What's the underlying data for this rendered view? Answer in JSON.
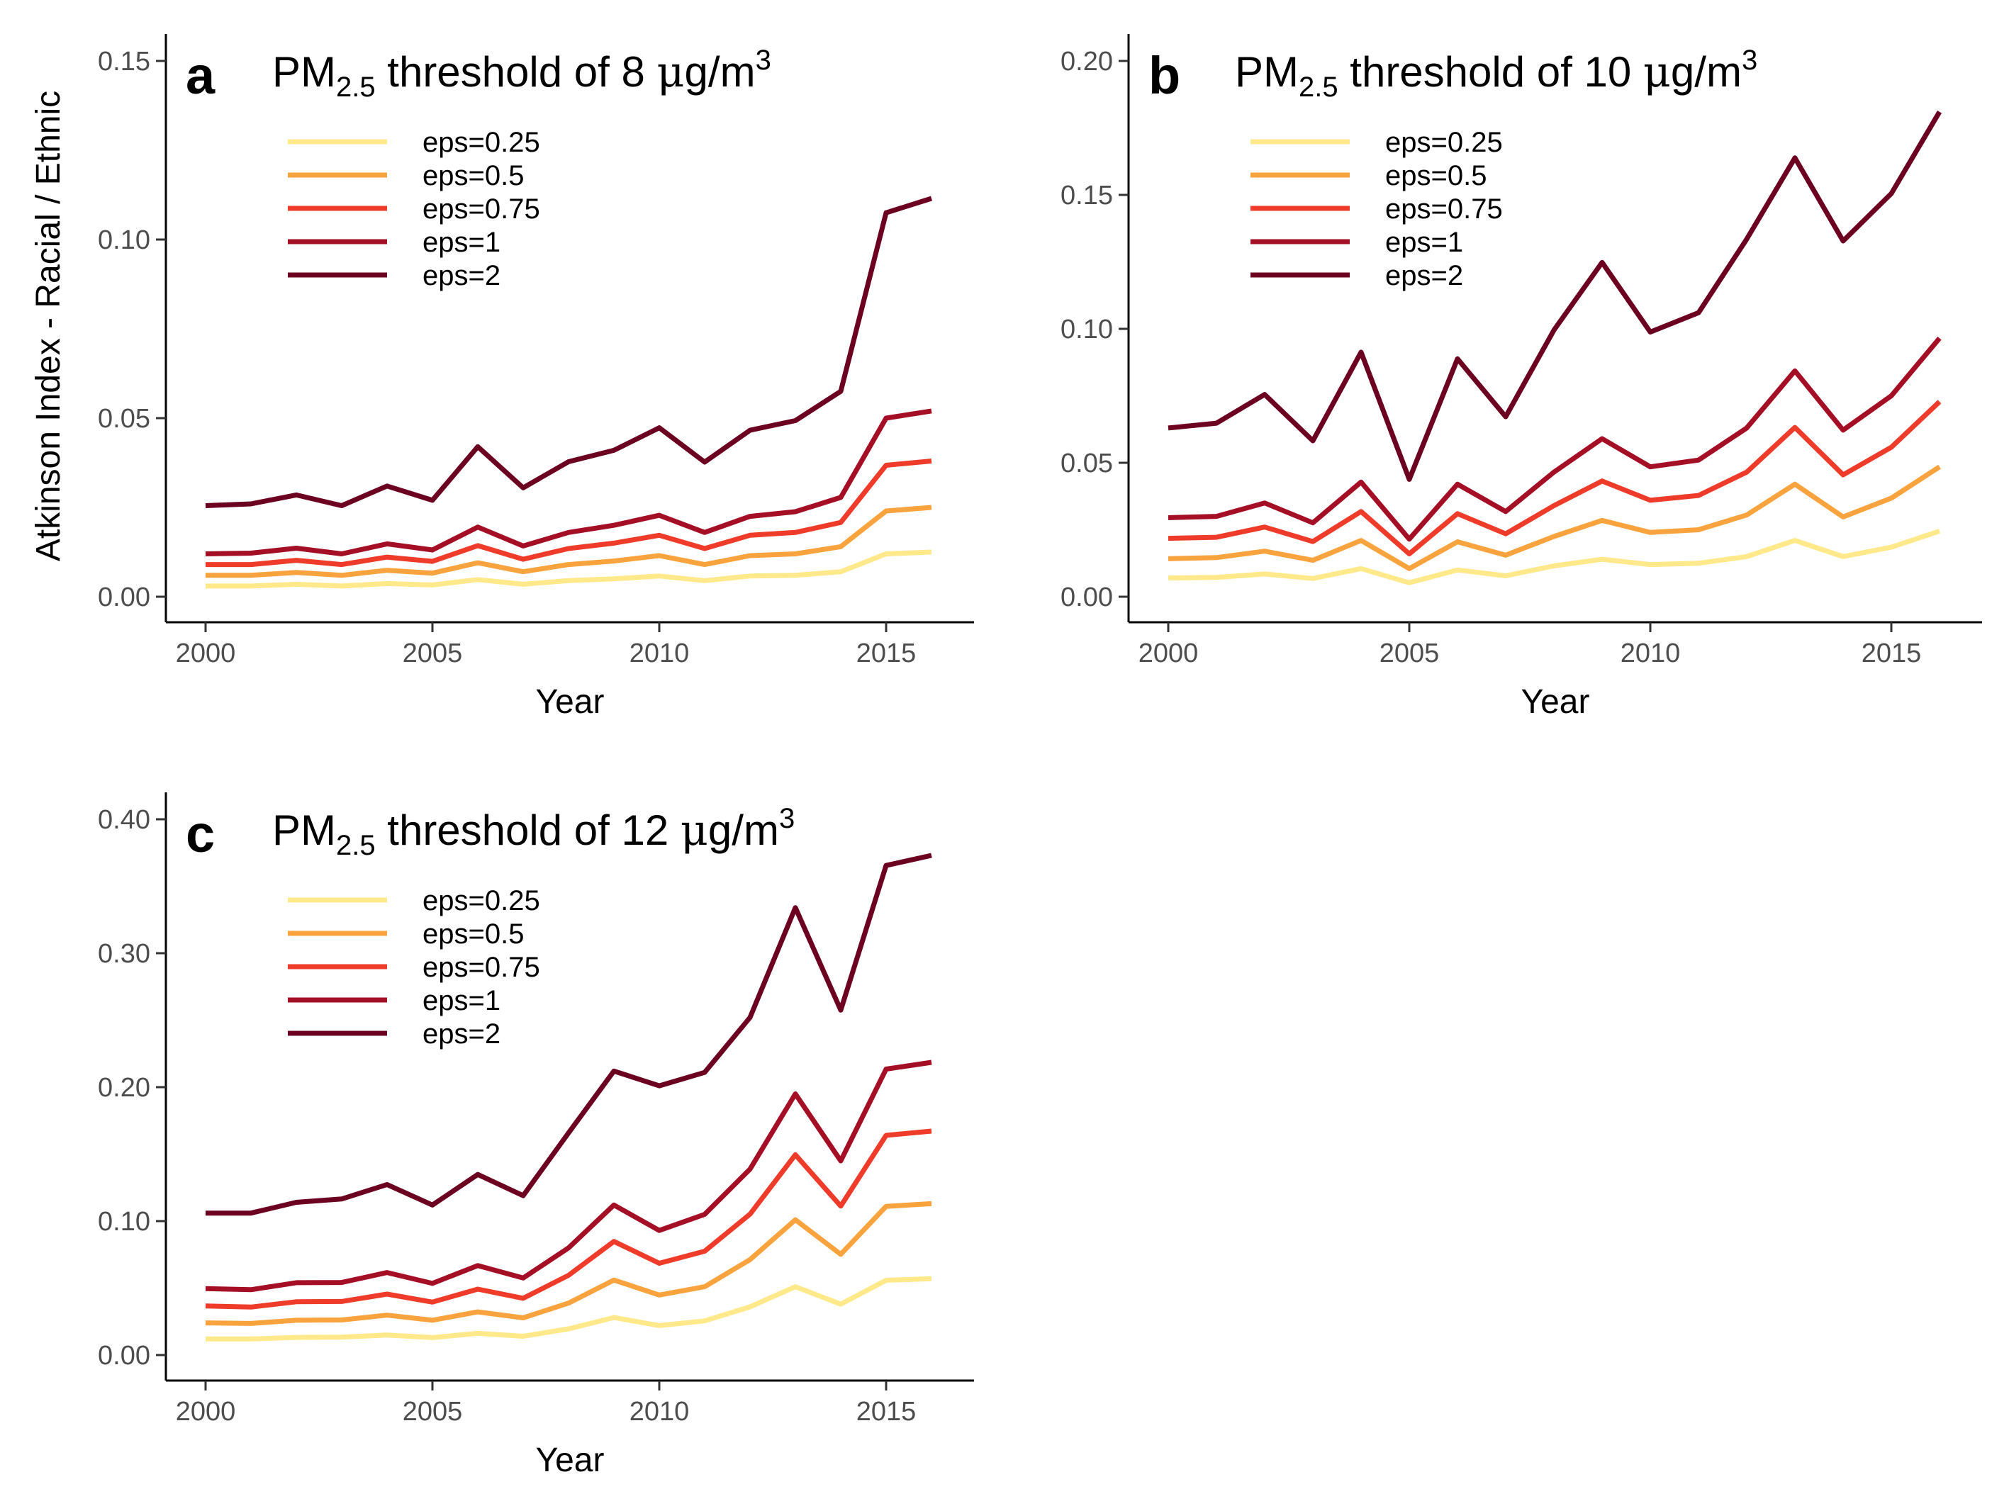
{
  "figure": {
    "shared_ylabel": "Atkinson Index - Racial / Ethnic"
  },
  "series_colors": {
    "eps=0.25": "#FFE98A",
    "eps=0.5": "#F9A33E",
    "eps=0.75": "#EE3B2A",
    "eps=1": "#A50F25",
    "eps=2": "#6B0020"
  },
  "chart_data": [
    {
      "type": "line",
      "panel": "a",
      "title": "PM2.5 threshold of 8 μg/m3",
      "title_parts": {
        "pre": "PM",
        "sub": "2.5",
        "mid": " threshold of 8 ",
        "mu": "μ",
        "unit": "g/m",
        "sup": "3"
      },
      "xlabel": "Year",
      "ylabel": "Atkinson Index - Racial / Ethnic",
      "xlim": [
        2000,
        2016
      ],
      "ylim": [
        0,
        0.15
      ],
      "x_ticks": [
        2000,
        2005,
        2010,
        2015
      ],
      "y_ticks": [
        "0.00",
        "0.05",
        "0.10",
        "0.15"
      ],
      "grid": false,
      "legend_position": "top-left",
      "x": [
        2000,
        2001,
        2002,
        2003,
        2004,
        2005,
        2006,
        2007,
        2008,
        2009,
        2010,
        2011,
        2012,
        2013,
        2014,
        2015,
        2016
      ],
      "series": [
        {
          "name": "eps=0.25",
          "values": [
            0.003,
            0.003,
            0.0035,
            0.003,
            0.0037,
            0.0033,
            0.0048,
            0.0035,
            0.0045,
            0.005,
            0.0058,
            0.0045,
            0.0058,
            0.006,
            0.007,
            0.012,
            0.0125
          ]
        },
        {
          "name": "eps=0.5",
          "values": [
            0.006,
            0.006,
            0.0068,
            0.006,
            0.0074,
            0.0066,
            0.0095,
            0.007,
            0.009,
            0.01,
            0.0115,
            0.009,
            0.0115,
            0.012,
            0.014,
            0.024,
            0.025
          ]
        },
        {
          "name": "eps=0.75",
          "values": [
            0.009,
            0.009,
            0.0102,
            0.009,
            0.0111,
            0.0099,
            0.0143,
            0.0105,
            0.0135,
            0.015,
            0.0172,
            0.0135,
            0.0172,
            0.018,
            0.0208,
            0.0368,
            0.038
          ]
        },
        {
          "name": "eps=1",
          "values": [
            0.012,
            0.0122,
            0.0136,
            0.012,
            0.0148,
            0.0131,
            0.0195,
            0.0142,
            0.018,
            0.02,
            0.0228,
            0.018,
            0.0225,
            0.0238,
            0.0278,
            0.05,
            0.052
          ]
        },
        {
          "name": "eps=2",
          "values": [
            0.0255,
            0.026,
            0.0285,
            0.0255,
            0.031,
            0.027,
            0.042,
            0.0305,
            0.0378,
            0.041,
            0.0473,
            0.0377,
            0.0466,
            0.0493,
            0.0575,
            0.1075,
            0.1115
          ]
        }
      ]
    },
    {
      "type": "line",
      "panel": "b",
      "title": "PM2.5 threshold of 10 μg/m3",
      "title_parts": {
        "pre": "PM",
        "sub": "2.5",
        "mid": " threshold of 10 ",
        "mu": "μ",
        "unit": "g/m",
        "sup": "3"
      },
      "xlabel": "Year",
      "ylabel": "",
      "xlim": [
        2000,
        2016
      ],
      "ylim": [
        0,
        0.2
      ],
      "x_ticks": [
        2000,
        2005,
        2010,
        2015
      ],
      "y_ticks": [
        "0.00",
        "0.05",
        "0.10",
        "0.15",
        "0.20"
      ],
      "grid": false,
      "legend_position": "top-left",
      "x": [
        2000,
        2001,
        2002,
        2003,
        2004,
        2005,
        2006,
        2007,
        2008,
        2009,
        2010,
        2011,
        2012,
        2013,
        2014,
        2015,
        2016
      ],
      "series": [
        {
          "name": "eps=0.25",
          "values": [
            0.007,
            0.0072,
            0.0085,
            0.0068,
            0.0105,
            0.0052,
            0.01,
            0.0078,
            0.0115,
            0.014,
            0.012,
            0.0125,
            0.015,
            0.021,
            0.015,
            0.0185,
            0.0245
          ]
        },
        {
          "name": "eps=0.5",
          "values": [
            0.0142,
            0.0146,
            0.017,
            0.0136,
            0.021,
            0.0105,
            0.0205,
            0.0155,
            0.0225,
            0.0285,
            0.024,
            0.025,
            0.0305,
            0.042,
            0.0298,
            0.0368,
            0.0485
          ]
        },
        {
          "name": "eps=0.75",
          "values": [
            0.0218,
            0.0222,
            0.026,
            0.0206,
            0.0318,
            0.016,
            0.031,
            0.0235,
            0.034,
            0.0432,
            0.036,
            0.0378,
            0.0465,
            0.0632,
            0.0455,
            0.0558,
            0.0728
          ]
        },
        {
          "name": "eps=1",
          "values": [
            0.0295,
            0.03,
            0.035,
            0.0276,
            0.0428,
            0.0215,
            0.042,
            0.0318,
            0.0465,
            0.059,
            0.0485,
            0.051,
            0.063,
            0.0843,
            0.0622,
            0.075,
            0.0965
          ]
        },
        {
          "name": "eps=2",
          "values": [
            0.063,
            0.0648,
            0.0755,
            0.0582,
            0.0913,
            0.0438,
            0.0888,
            0.0672,
            0.0995,
            0.1248,
            0.0988,
            0.106,
            0.1335,
            0.1638,
            0.1328,
            0.1505,
            0.181
          ]
        }
      ]
    },
    {
      "type": "line",
      "panel": "c",
      "title": "PM2.5 threshold of 12 μg/m3",
      "title_parts": {
        "pre": "PM",
        "sub": "2.5",
        "mid": " threshold of 12 ",
        "mu": "μ",
        "unit": "g/m",
        "sup": "3"
      },
      "xlabel": "Year",
      "ylabel": "",
      "xlim": [
        2000,
        2016
      ],
      "ylim": [
        0,
        0.4
      ],
      "x_ticks": [
        2000,
        2005,
        2010,
        2015
      ],
      "y_ticks": [
        "0.00",
        "0.10",
        "0.20",
        "0.30",
        "0.40"
      ],
      "grid": false,
      "legend_position": "top-left",
      "x": [
        2000,
        2001,
        2002,
        2003,
        2004,
        2005,
        2006,
        2007,
        2008,
        2009,
        2010,
        2011,
        2012,
        2013,
        2014,
        2015,
        2016
      ],
      "series": [
        {
          "name": "eps=0.25",
          "values": [
            0.012,
            0.012,
            0.0132,
            0.0134,
            0.015,
            0.013,
            0.0162,
            0.014,
            0.0195,
            0.028,
            0.022,
            0.0255,
            0.036,
            0.051,
            0.038,
            0.0558,
            0.057
          ]
        },
        {
          "name": "eps=0.5",
          "values": [
            0.024,
            0.0236,
            0.026,
            0.0262,
            0.0298,
            0.026,
            0.0322,
            0.0278,
            0.0388,
            0.056,
            0.0448,
            0.051,
            0.0712,
            0.101,
            0.0752,
            0.111,
            0.113
          ]
        },
        {
          "name": "eps=0.75",
          "values": [
            0.0366,
            0.0358,
            0.0398,
            0.04,
            0.0455,
            0.0395,
            0.0492,
            0.0424,
            0.0595,
            0.0848,
            0.0685,
            0.0775,
            0.1052,
            0.1495,
            0.1112,
            0.164,
            0.1672
          ]
        },
        {
          "name": "eps=1",
          "values": [
            0.0496,
            0.0488,
            0.054,
            0.0542,
            0.0616,
            0.0535,
            0.0668,
            0.0575,
            0.08,
            0.112,
            0.093,
            0.105,
            0.1388,
            0.195,
            0.145,
            0.2135,
            0.2185
          ]
        },
        {
          "name": "eps=2",
          "values": [
            0.106,
            0.106,
            0.114,
            0.1165,
            0.1273,
            0.112,
            0.1348,
            0.119,
            0.1658,
            0.212,
            0.201,
            0.211,
            0.252,
            0.334,
            0.2575,
            0.3655,
            0.373
          ]
        }
      ]
    }
  ]
}
